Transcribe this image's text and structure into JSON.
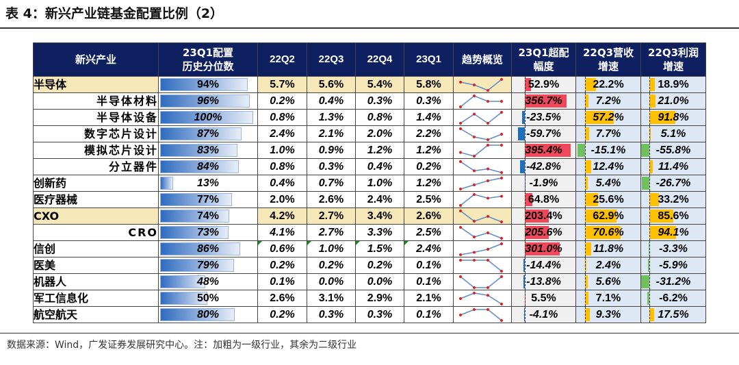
{
  "title": "表 4：新兴产业链基金配置比例（2）",
  "headers": [
    "新兴产业",
    "23Q1配置\n历史分位数",
    "22Q2",
    "22Q3",
    "22Q4",
    "23Q1",
    "趋势概览",
    "23Q1超配\n幅度",
    "22Q3营收\n增速",
    "22Q3利润\n增速"
  ],
  "colors": {
    "header_bg": "#0f2060",
    "highlight": "#f6e8b8",
    "positive_overweight": "#f0485a",
    "negative_overweight": "#1f6fbf",
    "growth_positive": "#ffc000",
    "growth_negative": "#70c060",
    "marker": "#e02020",
    "sparkline": "#5b8cc8"
  },
  "rows": [
    {
      "name": "半导体",
      "level": 1,
      "hl": true,
      "it": false,
      "pct": 94,
      "pct_text": "94%",
      "q": [
        5.7,
        5.6,
        5.4,
        5.8
      ],
      "qt": [
        "5.7%",
        "5.6%",
        "5.4%",
        "5.8%"
      ],
      "ov": 52.9,
      "ov_text": "52.9%",
      "rev": 22.2,
      "rev_text": "22.2%",
      "prof": 18.9,
      "prof_text": "18.9%"
    },
    {
      "name": "半导体材料",
      "level": 2,
      "it": true,
      "pct": 96,
      "pct_text": "96%",
      "q": [
        0.2,
        0.4,
        0.3,
        0.3
      ],
      "qt": [
        "0.2%",
        "0.4%",
        "0.3%",
        "0.3%"
      ],
      "ov": 356.7,
      "ov_text": "356.7%",
      "rev": 7.2,
      "rev_text": "7.2%",
      "prof": 21.0,
      "prof_text": "21.0%"
    },
    {
      "name": "半导体设备",
      "level": 2,
      "it": true,
      "pct": 100,
      "pct_text": "100%",
      "q": [
        0.8,
        1.3,
        0.8,
        1.4
      ],
      "qt": [
        "0.8%",
        "1.3%",
        "0.8%",
        "1.4%"
      ],
      "ov": -23.5,
      "ov_text": "-23.5%",
      "rev": 57.2,
      "rev_text": "57.2%",
      "prof": 91.8,
      "prof_text": "91.8%"
    },
    {
      "name": "数字芯片设计",
      "level": 2,
      "it": true,
      "pct": 87,
      "pct_text": "87%",
      "q": [
        2.4,
        2.1,
        2.0,
        2.2
      ],
      "qt": [
        "2.4%",
        "2.1%",
        "2.0%",
        "2.2%"
      ],
      "ov": -59.7,
      "ov_text": "-59.7%",
      "rev": 7.7,
      "rev_text": "7.7%",
      "prof": 5.1,
      "prof_text": "5.1%"
    },
    {
      "name": "模拟芯片设计",
      "level": 2,
      "it": true,
      "pct": 83,
      "pct_text": "83%",
      "q": [
        1.0,
        0.9,
        1.2,
        1.2
      ],
      "qt": [
        "1.0%",
        "0.9%",
        "1.2%",
        "1.2%"
      ],
      "ov": 395.4,
      "ov_text": "395.4%",
      "rev": -15.1,
      "rev_text": "-15.1%",
      "prof": -55.8,
      "prof_text": "-55.8%"
    },
    {
      "name": "分立器件",
      "level": 2,
      "it": true,
      "pct": 84,
      "pct_text": "84%",
      "q": [
        0.8,
        0.3,
        0.4,
        0.2
      ],
      "qt": [
        "0.8%",
        "0.3%",
        "0.4%",
        "0.2%"
      ],
      "ov": -42.8,
      "ov_text": "-42.8%",
      "rev": 12.4,
      "rev_text": "12.4%",
      "prof": 11.4,
      "prof_text": "11.4%"
    },
    {
      "name": "创新药",
      "level": 1,
      "it": true,
      "pct": 13,
      "pct_text": "13%",
      "q": [
        0.4,
        0.7,
        1.0,
        1.2
      ],
      "qt": [
        "0.4%",
        "0.7%",
        "1.0%",
        "1.2%"
      ],
      "ov": -1.9,
      "ov_text": "-1.9%",
      "rev": 5.4,
      "rev_text": "5.4%",
      "prof": -26.7,
      "prof_text": "-26.7%"
    },
    {
      "name": "医疗器械",
      "level": 1,
      "it": false,
      "pct": 77,
      "pct_text": "77%",
      "q": [
        2.0,
        2.6,
        2.4,
        2.5
      ],
      "qt": [
        "2.0%",
        "2.6%",
        "2.4%",
        "2.5%"
      ],
      "ov": 64.8,
      "ov_text": "64.8%",
      "rev": 25.6,
      "rev_text": "25.6%",
      "prof": 33.2,
      "prof_text": "33.2%"
    },
    {
      "name": "CXO",
      "level": 1,
      "hl": true,
      "it": false,
      "pct": 74,
      "pct_text": "74%",
      "q": [
        4.2,
        2.7,
        3.4,
        2.6
      ],
      "qt": [
        "4.2%",
        "2.7%",
        "3.4%",
        "2.6%"
      ],
      "ov": 203.4,
      "ov_text": "203.4%",
      "rev": 62.9,
      "rev_text": "62.9%",
      "prof": 85.6,
      "prof_text": "85.6%"
    },
    {
      "name": "CRO",
      "level": 2,
      "it": true,
      "pct": 73,
      "pct_text": "73%",
      "q": [
        4.1,
        2.7,
        3.3,
        2.5
      ],
      "qt": [
        "4.1%",
        "2.7%",
        "3.3%",
        "2.5%"
      ],
      "ov": 205.6,
      "ov_text": "205.6%",
      "rev": 70.6,
      "rev_text": "70.6%",
      "prof": 94.1,
      "prof_text": "94.1%"
    },
    {
      "name": "信创",
      "level": 1,
      "it": true,
      "flag": true,
      "pct": 86,
      "pct_text": "86%",
      "q": [
        0.6,
        1.0,
        1.5,
        2.4
      ],
      "qt": [
        "0.6%",
        "1.0%",
        "1.5%",
        "2.4%"
      ],
      "ov": 301.0,
      "ov_text": "301.0%",
      "rev": 11.8,
      "rev_text": "11.8%",
      "prof": -3.3,
      "prof_text": "-3.3%"
    },
    {
      "name": "医美",
      "level": 1,
      "it": true,
      "pct": 79,
      "pct_text": "79%",
      "q": [
        0.2,
        0.2,
        0.2,
        0.1
      ],
      "qt": [
        "0.2%",
        "0.2%",
        "0.2%",
        "0.1%"
      ],
      "ov": -14.4,
      "ov_text": "-14.4%",
      "rev": 2.4,
      "rev_text": "2.4%",
      "prof": -5.9,
      "prof_text": "-5.9%"
    },
    {
      "name": "机器人",
      "level": 1,
      "it": true,
      "pct": 48,
      "pct_text": "48%",
      "q": [
        0.1,
        0.0,
        0.0,
        0.1
      ],
      "qt": [
        "0.1%",
        "0.0%",
        "0.0%",
        "0.1%"
      ],
      "ov": -13.8,
      "ov_text": "-13.8%",
      "rev": 5.6,
      "rev_text": "5.6%",
      "prof": -31.2,
      "prof_text": "-31.2%"
    },
    {
      "name": "军工信息化",
      "level": 1,
      "it": false,
      "pct": 50,
      "pct_text": "50%",
      "q": [
        2.6,
        3.1,
        2.9,
        2.1
      ],
      "qt": [
        "2.6%",
        "3.1%",
        "2.9%",
        "2.1%"
      ],
      "ov": 5.5,
      "ov_text": "5.5%",
      "rev": 7.1,
      "rev_text": "7.1%",
      "prof": -6.2,
      "prof_text": "-6.2%"
    },
    {
      "name": "航空航天",
      "level": 1,
      "it": true,
      "pct": 80,
      "pct_text": "80%",
      "q": [
        0.2,
        0.3,
        0.3,
        0.1
      ],
      "qt": [
        "0.2%",
        "0.3%",
        "0.3%",
        "0.1%"
      ],
      "ov": -4.1,
      "ov_text": "-4.1%",
      "rev": 9.3,
      "rev_text": "9.3%",
      "prof": 17.5,
      "prof_text": "17.5%"
    }
  ],
  "source": "数据来源：Wind，广发证券发展研究中心。注：加粗为一级行业，其余为二级行业"
}
